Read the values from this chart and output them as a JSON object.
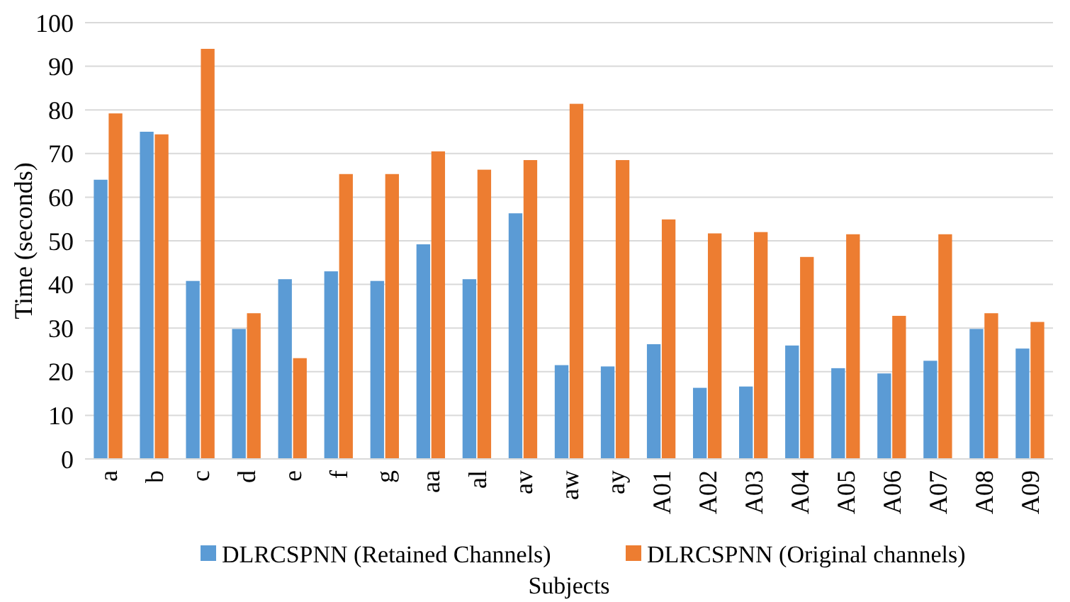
{
  "chart_data": {
    "type": "bar",
    "xlabel": "Subjects",
    "ylabel": "Time (seconds)",
    "categories": [
      "a",
      "b",
      "c",
      "d",
      "e",
      "f",
      "g",
      "aa",
      "al",
      "av",
      "aw",
      "ay",
      "A01",
      "A02",
      "A03",
      "A04",
      "A05",
      "A06",
      "A07",
      "A08",
      "A09"
    ],
    "series": [
      {
        "name": "DLRCSPNN (Retained Channels)",
        "color": "#5b9bd5",
        "values": [
          64,
          75,
          40.8,
          29.8,
          41.2,
          43,
          40.8,
          49.2,
          41.2,
          56.3,
          21.5,
          21.2,
          26.3,
          16.3,
          16.6,
          26,
          20.8,
          19.6,
          22.5,
          29.8,
          25.3
        ]
      },
      {
        "name": "DLRCSPNN (Original channels)",
        "color": "#ed7d31",
        "values": [
          79.2,
          74.4,
          94,
          33.4,
          23.1,
          65.3,
          65.3,
          70.5,
          66.3,
          68.5,
          81.4,
          68.5,
          54.9,
          51.7,
          52,
          46.3,
          51.5,
          32.8,
          51.5,
          33.4,
          31.4
        ]
      }
    ],
    "ylim": [
      0,
      100
    ],
    "yticks": [
      0,
      10,
      20,
      30,
      40,
      50,
      60,
      70,
      80,
      90,
      100
    ],
    "grid": "y",
    "legend": "bottom"
  }
}
